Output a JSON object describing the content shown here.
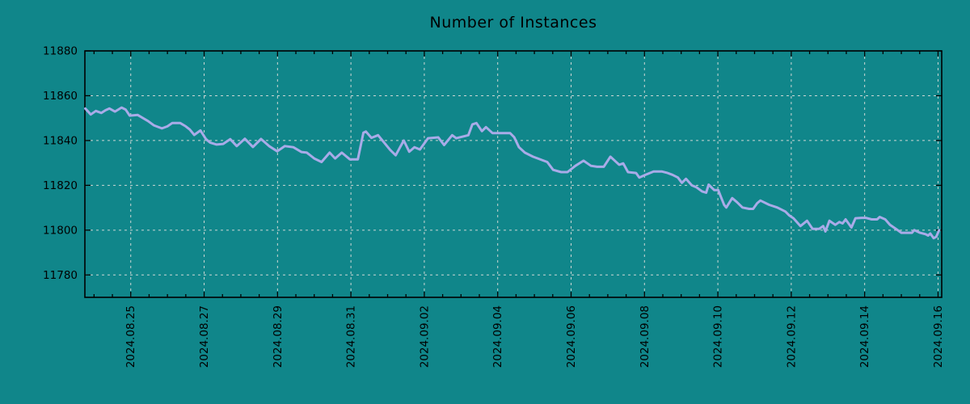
{
  "chart_data": {
    "type": "line",
    "title": "Number of Instances",
    "xlabel": "",
    "ylabel": "",
    "legend": "none",
    "grid": "dashed",
    "colors": {
      "background": "#10868a",
      "grid": "#ccd7d4",
      "axis": "#000000",
      "text": "#000000",
      "line": "#a9abe8"
    },
    "x_axis": {
      "unit": "date (day index: 25 = 2024.08.25, 47 = 2024.09.16)",
      "min_day": 23.75,
      "max_day": 47.1,
      "minor_tick_step_days": 0.5,
      "tick_days": [
        25,
        27,
        29,
        31,
        33,
        35,
        37,
        39,
        41,
        43,
        45,
        47
      ],
      "tick_labels": [
        "2024.08.25",
        "2024.08.27",
        "2024.08.29",
        "2024.08.31",
        "2024.09.02",
        "2024.09.04",
        "2024.09.06",
        "2024.09.08",
        "2024.09.10",
        "2024.09.12",
        "2024.09.14",
        "2024.09.16"
      ]
    },
    "y_axis": {
      "min": 11770,
      "max": 11880,
      "ticks": [
        11780,
        11800,
        11820,
        11840,
        11860,
        11880
      ]
    },
    "series": [
      {
        "name": "Number of Instances",
        "color": "#a9abe8",
        "points": [
          [
            23.76,
            11854.3
          ],
          [
            23.91,
            11851.6
          ],
          [
            24.05,
            11853.2
          ],
          [
            24.2,
            11852.3
          ],
          [
            24.31,
            11853.5
          ],
          [
            24.42,
            11854.3
          ],
          [
            24.57,
            11852.9
          ],
          [
            24.75,
            11854.7
          ],
          [
            24.86,
            11853.8
          ],
          [
            24.97,
            11851.1
          ],
          [
            25.19,
            11851.4
          ],
          [
            25.47,
            11848.7
          ],
          [
            25.63,
            11846.8
          ],
          [
            25.85,
            11845.4
          ],
          [
            26.0,
            11846.3
          ],
          [
            26.13,
            11847.8
          ],
          [
            26.35,
            11847.8
          ],
          [
            26.5,
            11846.3
          ],
          [
            26.61,
            11844.9
          ],
          [
            26.73,
            11842.5
          ],
          [
            26.9,
            11844.5
          ],
          [
            27.05,
            11840.6
          ],
          [
            27.16,
            11839.1
          ],
          [
            27.34,
            11838.2
          ],
          [
            27.52,
            11838.5
          ],
          [
            27.71,
            11840.6
          ],
          [
            27.89,
            11837.5
          ],
          [
            28.11,
            11840.8
          ],
          [
            28.33,
            11837.1
          ],
          [
            28.55,
            11840.7
          ],
          [
            28.77,
            11837.5
          ],
          [
            28.99,
            11835.2
          ],
          [
            29.2,
            11837.5
          ],
          [
            29.43,
            11837.0
          ],
          [
            29.65,
            11834.9
          ],
          [
            29.8,
            11834.6
          ],
          [
            30.0,
            11832.0
          ],
          [
            30.2,
            11830.4
          ],
          [
            30.42,
            11834.6
          ],
          [
            30.57,
            11832.0
          ],
          [
            30.75,
            11834.6
          ],
          [
            30.97,
            11831.6
          ],
          [
            31.19,
            11831.6
          ],
          [
            31.34,
            11843.5
          ],
          [
            31.41,
            11844.0
          ],
          [
            31.56,
            11841.2
          ],
          [
            31.74,
            11842.4
          ],
          [
            32.07,
            11835.8
          ],
          [
            32.22,
            11833.4
          ],
          [
            32.44,
            11840.0
          ],
          [
            32.59,
            11835.0
          ],
          [
            32.73,
            11837.0
          ],
          [
            32.88,
            11836.0
          ],
          [
            33.1,
            11841.0
          ],
          [
            33.38,
            11841.4
          ],
          [
            33.54,
            11838.0
          ],
          [
            33.76,
            11842.4
          ],
          [
            33.87,
            11841.0
          ],
          [
            34.2,
            11842.4
          ],
          [
            34.31,
            11847.2
          ],
          [
            34.42,
            11847.8
          ],
          [
            34.57,
            11844.2
          ],
          [
            34.68,
            11846.0
          ],
          [
            34.86,
            11843.3
          ],
          [
            35.34,
            11843.3
          ],
          [
            35.45,
            11841.5
          ],
          [
            35.58,
            11837.0
          ],
          [
            35.74,
            11834.6
          ],
          [
            35.96,
            11832.8
          ],
          [
            36.35,
            11830.4
          ],
          [
            36.51,
            11826.9
          ],
          [
            36.73,
            11825.9
          ],
          [
            36.9,
            11825.9
          ],
          [
            37.12,
            11828.7
          ],
          [
            37.34,
            11831.0
          ],
          [
            37.54,
            11828.7
          ],
          [
            37.71,
            11828.3
          ],
          [
            37.89,
            11828.3
          ],
          [
            38.07,
            11832.8
          ],
          [
            38.31,
            11829.2
          ],
          [
            38.42,
            11829.8
          ],
          [
            38.55,
            11825.9
          ],
          [
            38.77,
            11825.5
          ],
          [
            38.86,
            11823.5
          ],
          [
            39.03,
            11824.7
          ],
          [
            39.25,
            11826.2
          ],
          [
            39.47,
            11826.2
          ],
          [
            39.63,
            11825.5
          ],
          [
            39.76,
            11824.7
          ],
          [
            39.91,
            11823.5
          ],
          [
            40.02,
            11821.1
          ],
          [
            40.13,
            11822.9
          ],
          [
            40.29,
            11820.0
          ],
          [
            40.42,
            11819.1
          ],
          [
            40.57,
            11817.3
          ],
          [
            40.68,
            11816.7
          ],
          [
            40.75,
            11820.3
          ],
          [
            40.9,
            11817.9
          ],
          [
            41.01,
            11817.9
          ],
          [
            41.17,
            11811.3
          ],
          [
            41.23,
            11810.1
          ],
          [
            41.39,
            11814.3
          ],
          [
            41.52,
            11812.5
          ],
          [
            41.67,
            11810.1
          ],
          [
            41.85,
            11809.5
          ],
          [
            41.96,
            11809.5
          ],
          [
            42.07,
            11812.0
          ],
          [
            42.16,
            11813.2
          ],
          [
            42.4,
            11811.3
          ],
          [
            42.62,
            11810.1
          ],
          [
            42.84,
            11808.3
          ],
          [
            42.95,
            11806.5
          ],
          [
            43.06,
            11805.3
          ],
          [
            43.25,
            11801.8
          ],
          [
            43.43,
            11804.2
          ],
          [
            43.58,
            11800.6
          ],
          [
            43.76,
            11800.6
          ],
          [
            43.87,
            11801.8
          ],
          [
            43.93,
            11799.4
          ],
          [
            44.04,
            11804.2
          ],
          [
            44.2,
            11802.4
          ],
          [
            44.31,
            11803.6
          ],
          [
            44.4,
            11803.0
          ],
          [
            44.48,
            11804.8
          ],
          [
            44.64,
            11801.2
          ],
          [
            44.75,
            11805.3
          ],
          [
            44.92,
            11805.5
          ],
          [
            45.03,
            11805.5
          ],
          [
            45.19,
            11804.8
          ],
          [
            45.34,
            11804.8
          ],
          [
            45.41,
            11805.9
          ],
          [
            45.56,
            11804.8
          ],
          [
            45.69,
            11802.4
          ],
          [
            45.85,
            11800.6
          ],
          [
            46.0,
            11798.8
          ],
          [
            46.18,
            11798.8
          ],
          [
            46.29,
            11798.8
          ],
          [
            46.35,
            11800.0
          ],
          [
            46.51,
            11798.8
          ],
          [
            46.66,
            11798.2
          ],
          [
            46.73,
            11797.6
          ],
          [
            46.79,
            11798.5
          ],
          [
            46.88,
            11796.4
          ],
          [
            46.95,
            11797.0
          ],
          [
            47.03,
            11800.0
          ]
        ]
      }
    ]
  }
}
